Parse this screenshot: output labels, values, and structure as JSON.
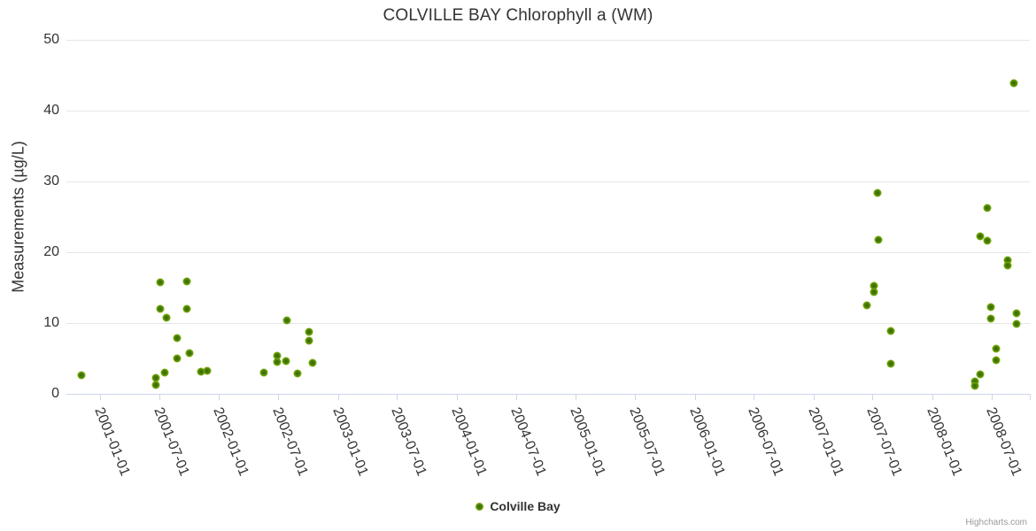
{
  "chart": {
    "title": "COLVILLE BAY Chlorophyll a (WM)",
    "y_axis_title": "Measurements (µg/L)",
    "legend_label": "Colville Bay",
    "credits": "Highcharts.com",
    "colors": {
      "marker_outer": "#85b90e",
      "marker_inner": "#3c6b00",
      "gridline": "#e6e6e6",
      "axis_line": "#ccd6eb",
      "text": "#333333",
      "credits_text": "#999999"
    }
  },
  "chart_data": {
    "type": "scatter",
    "title": "COLVILLE BAY Chlorophyll a (WM)",
    "xlabel": "",
    "ylabel": "Measurements (µg/L)",
    "legend_position": "bottom",
    "grid": "horizontal-only",
    "xlim": [
      "2000-09-19",
      "2008-10-26"
    ],
    "ylim": [
      0,
      50
    ],
    "x_tick_labels": [
      "2001-01-01",
      "2001-07-01",
      "2002-01-01",
      "2002-07-01",
      "2003-01-01",
      "2003-07-01",
      "2004-01-01",
      "2004-07-01",
      "2005-01-01",
      "2005-07-01",
      "2006-01-01",
      "2006-07-01",
      "2007-01-01",
      "2007-07-01",
      "2008-01-01",
      "2008-07-01"
    ],
    "y_ticks": [
      0,
      10,
      20,
      30,
      40,
      50
    ],
    "y_tick_labels": [
      "0",
      "10",
      "20",
      "30",
      "40",
      "50"
    ],
    "series": [
      {
        "name": "Colville Bay",
        "points": [
          [
            "2000-11-05",
            2.6
          ],
          [
            "2001-06-21",
            2.2
          ],
          [
            "2001-06-21",
            1.2
          ],
          [
            "2001-07-05",
            15.8
          ],
          [
            "2001-07-05",
            12.0
          ],
          [
            "2001-07-18",
            3.0
          ],
          [
            "2001-07-23",
            10.8
          ],
          [
            "2001-08-24",
            7.9
          ],
          [
            "2001-08-24",
            5.0
          ],
          [
            "2001-09-23",
            15.9
          ],
          [
            "2001-09-23",
            12.0
          ],
          [
            "2001-10-01",
            5.8
          ],
          [
            "2001-11-06",
            3.1
          ],
          [
            "2001-11-26",
            3.3
          ],
          [
            "2002-05-18",
            3.0
          ],
          [
            "2002-06-27",
            5.4
          ],
          [
            "2002-06-27",
            4.5
          ],
          [
            "2002-07-25",
            4.6
          ],
          [
            "2002-07-27",
            10.4
          ],
          [
            "2002-08-30",
            2.9
          ],
          [
            "2002-10-03",
            8.8
          ],
          [
            "2002-10-03",
            7.5
          ],
          [
            "2002-10-16",
            4.4
          ],
          [
            "2007-06-14",
            12.5
          ],
          [
            "2007-07-04",
            15.3
          ],
          [
            "2007-07-04",
            14.4
          ],
          [
            "2007-07-15",
            28.4
          ],
          [
            "2007-07-18",
            21.7
          ],
          [
            "2007-08-25",
            8.9
          ],
          [
            "2007-08-25",
            4.2
          ],
          [
            "2008-05-10",
            1.7
          ],
          [
            "2008-05-10",
            1.1
          ],
          [
            "2008-05-28",
            2.7
          ],
          [
            "2008-05-28",
            22.2
          ],
          [
            "2008-06-17",
            26.2
          ],
          [
            "2008-06-17",
            21.6
          ],
          [
            "2008-06-29",
            12.2
          ],
          [
            "2008-06-29",
            10.6
          ],
          [
            "2008-07-14",
            6.4
          ],
          [
            "2008-07-14",
            4.7
          ],
          [
            "2008-08-19",
            18.9
          ],
          [
            "2008-08-19",
            18.1
          ],
          [
            "2008-09-07",
            43.9
          ],
          [
            "2008-09-16",
            11.4
          ],
          [
            "2008-09-16",
            9.9
          ]
        ]
      }
    ]
  }
}
